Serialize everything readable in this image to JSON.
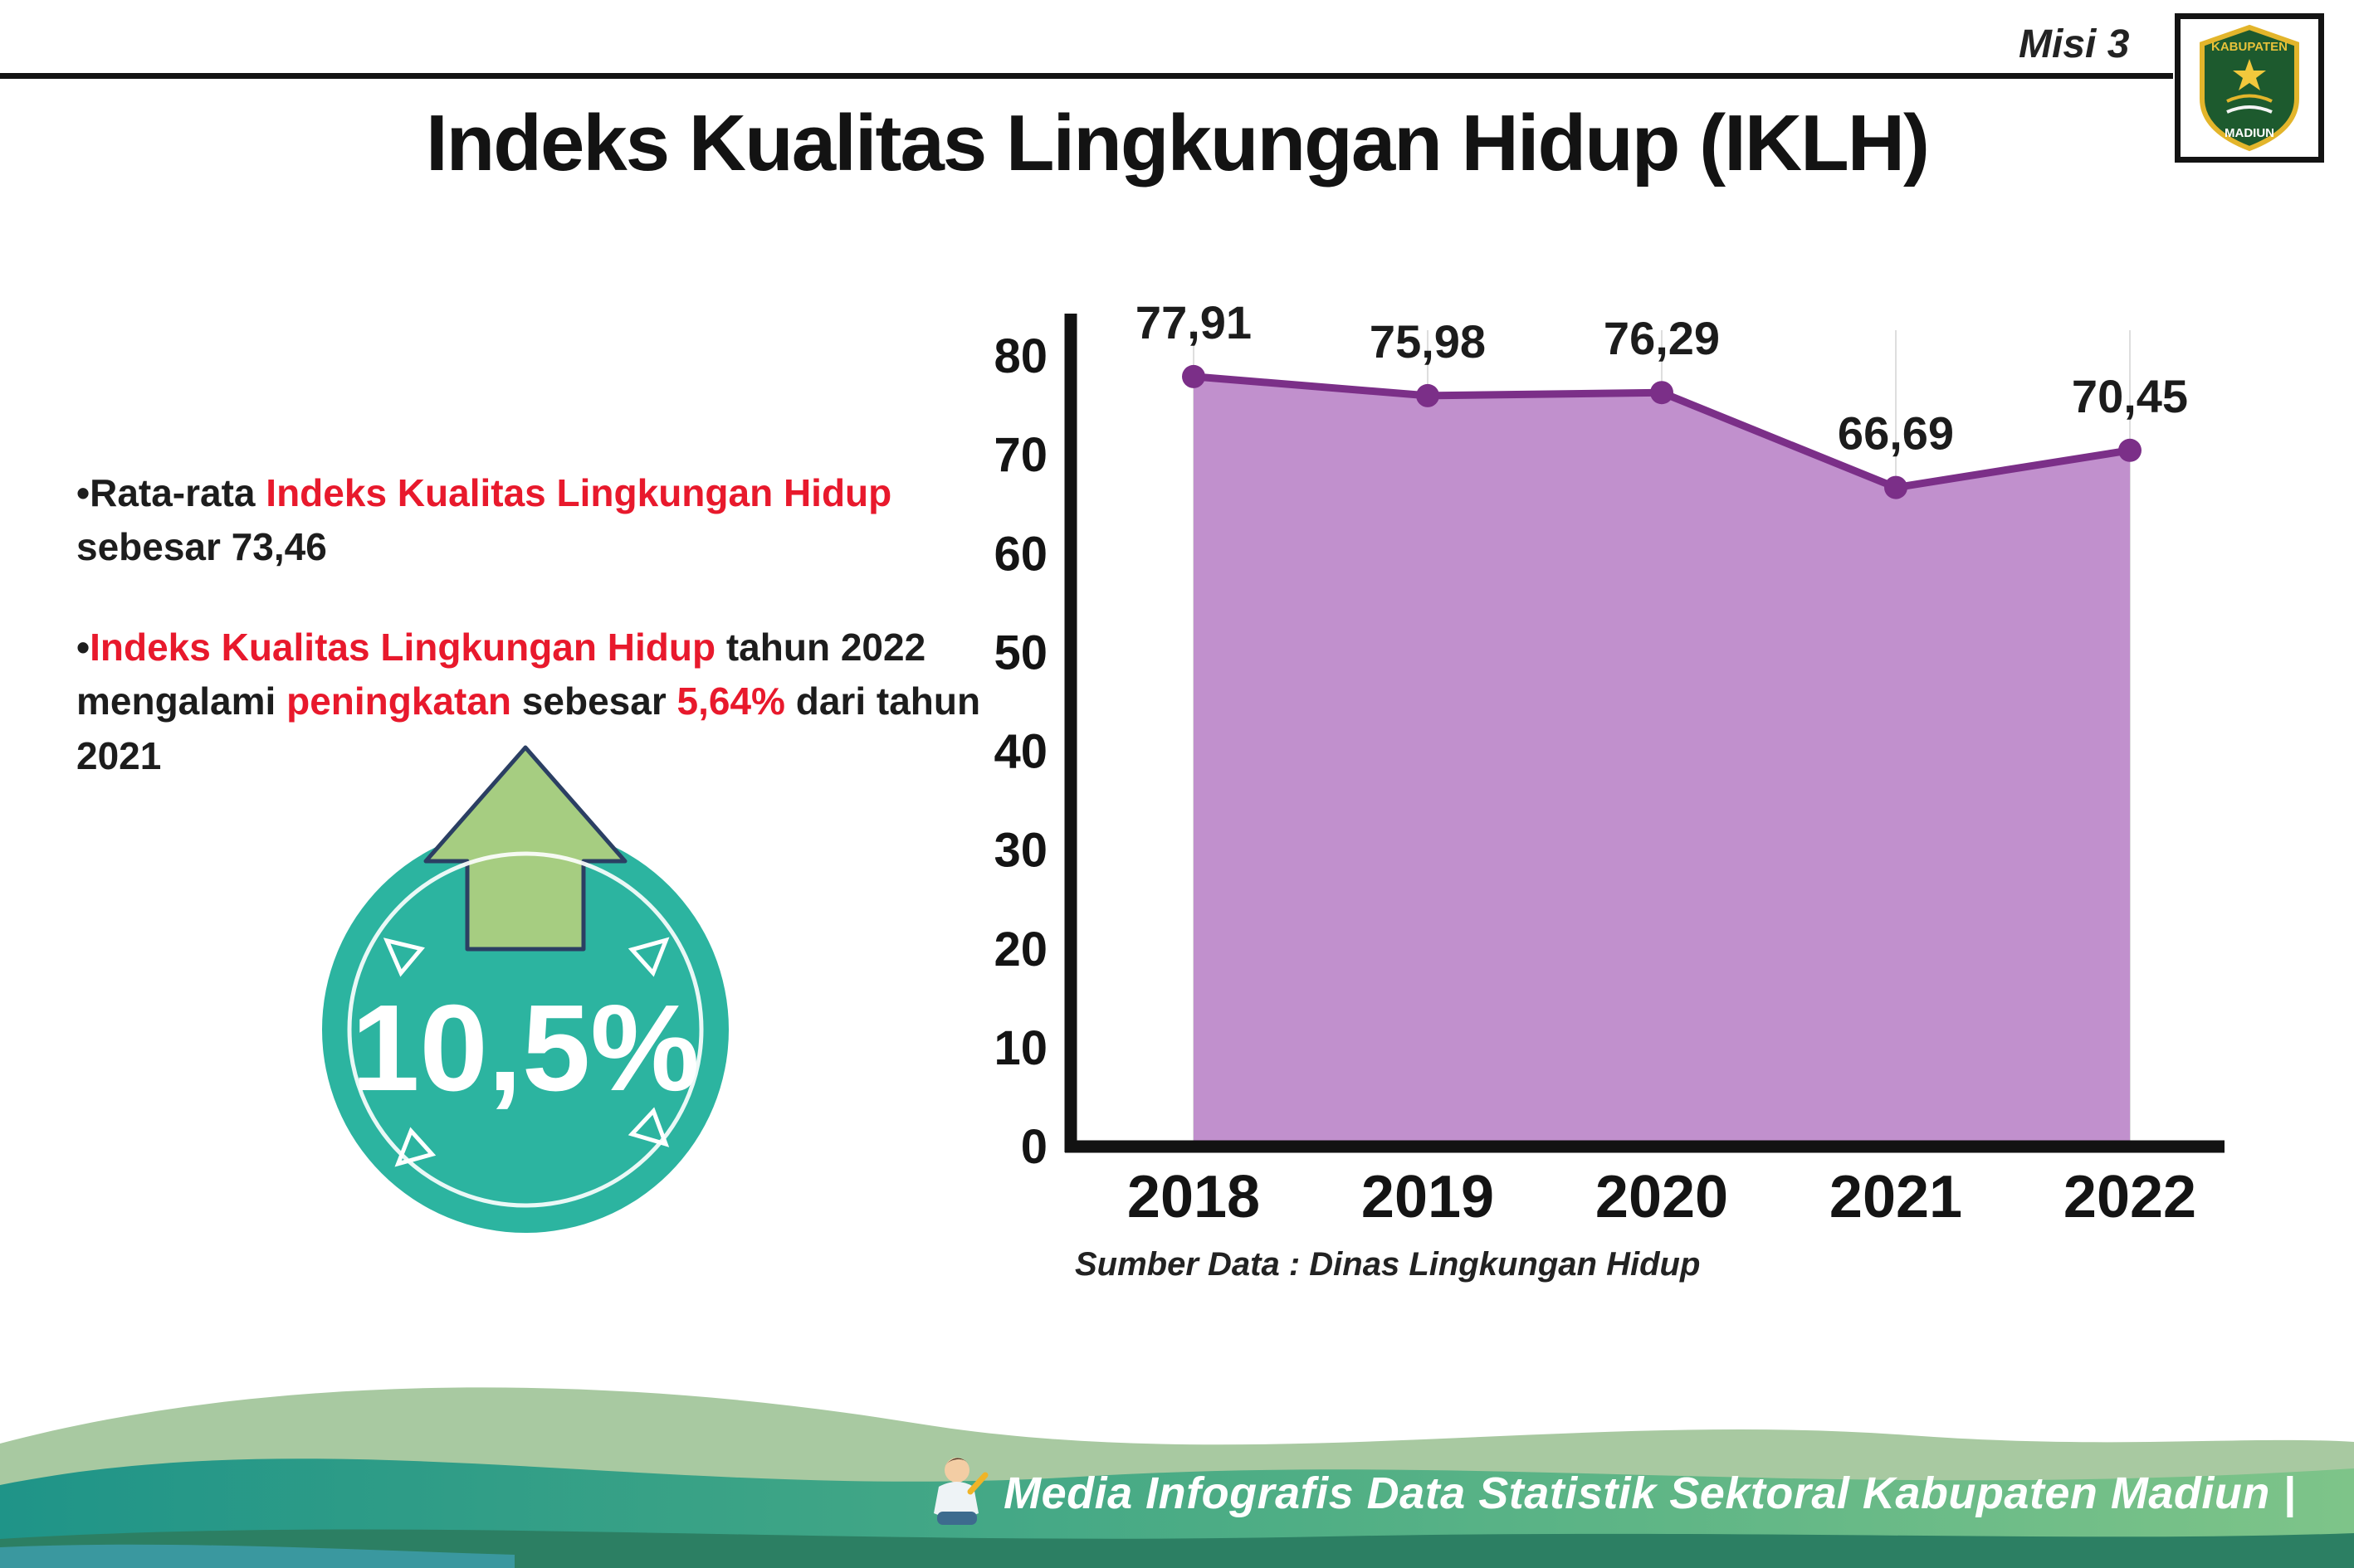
{
  "page": {
    "misi": "Misi 3",
    "title": "Indeks Kualitas Lingkungan Hidup (IKLH)",
    "source": "Sumber Data : Dinas Lingkungan Hidup",
    "footer": "Media Infografis Data Statistik Sektoral Kabupaten Madiun |"
  },
  "bullets": [
    {
      "segments": [
        {
          "t": "•Rata-rata ",
          "red": false
        },
        {
          "t": "Indeks Kualitas Lingkungan Hidup",
          "red": true
        },
        {
          "t": " sebesar 73,46",
          "red": false
        }
      ]
    },
    {
      "segments": [
        {
          "t": "•",
          "red": false
        },
        {
          "t": "Indeks Kualitas Lingkungan Hidup",
          "red": true
        },
        {
          "t": " tahun 2022 mengalami ",
          "red": false
        },
        {
          "t": "peningkatan",
          "red": true
        },
        {
          "t": " sebesar ",
          "red": false
        },
        {
          "t": "5,64%",
          "red": true
        },
        {
          "t": " dari tahun 2021",
          "red": false
        }
      ]
    }
  ],
  "badge": {
    "value": "10,5%"
  },
  "logo": {
    "top": "KABUPATEN",
    "bottom": "MADIUN"
  },
  "chart_data": {
    "type": "area",
    "title": "",
    "categories": [
      "2018",
      "2019",
      "2020",
      "2021",
      "2022"
    ],
    "values": [
      77.91,
      75.98,
      76.29,
      66.69,
      70.45
    ],
    "point_labels": [
      "77,91",
      "75,98",
      "76,29",
      "66,69",
      "70,45"
    ],
    "xlabel": "",
    "ylabel": "",
    "ylim": [
      0,
      80
    ],
    "yticks": [
      0,
      10,
      20,
      30,
      40,
      50,
      60,
      70,
      80
    ],
    "grid": "light-vertical",
    "legend": "none",
    "colors": {
      "area": "#c190cd",
      "line": "#7b2f88",
      "point": "#7b2f88",
      "axis": "#121212",
      "grid": "#dedede",
      "accent_red": "#e8192c",
      "badge_teal": "#2cb4a0",
      "arrow_green": "#a6cd81"
    }
  }
}
